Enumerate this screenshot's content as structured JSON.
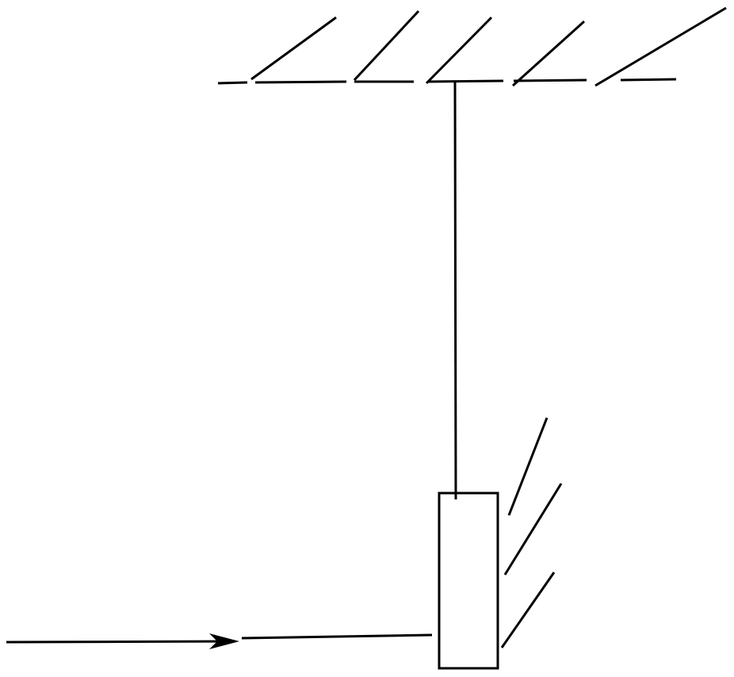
{
  "diagram": {
    "stroke_color": "#000000",
    "background_color": "#ffffff"
  }
}
